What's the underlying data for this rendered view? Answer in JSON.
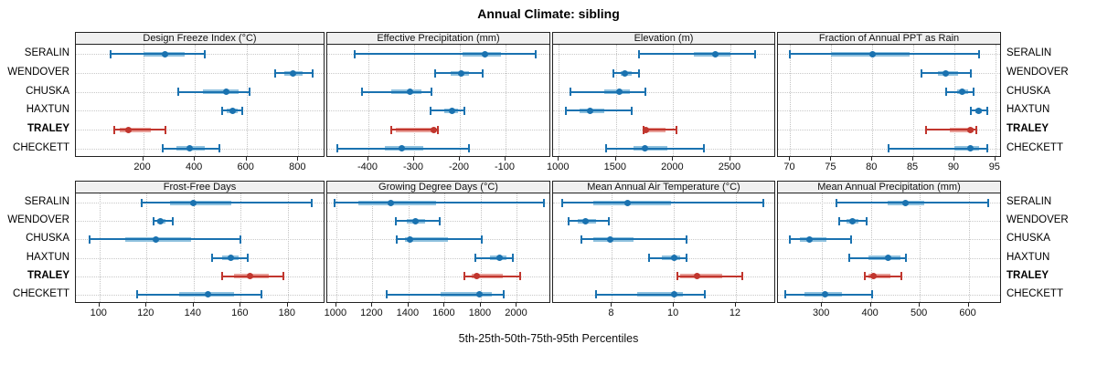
{
  "title": "Annual Climate: sibling",
  "caption": "5th-25th-50th-75th-95th Percentiles",
  "stations": [
    "SERALIN",
    "WENDOVER",
    "CHUSKA",
    "HAXTUN",
    "TRALEY",
    "CHECKETT"
  ],
  "highlight_station": "TRALEY",
  "colors": {
    "series_line": "#1a72b0",
    "series_band": "#8fc1de",
    "highlight_line": "#c1362e",
    "highlight_band": "#e8a099",
    "grid": "#c6c6c6",
    "strip_bg": "#f0f0f0",
    "panel_border": "#222222"
  },
  "chart_data": {
    "type": "scatter",
    "variant": "multi-panel percentile interval dot plot (5-25-50-75-95)",
    "percentile_levels": [
      5,
      25,
      50,
      75,
      95
    ],
    "legend_position": "none",
    "grid": "dotted",
    "panels": [
      {
        "title": "Design Freeze Index (°C)",
        "grid_row": 1,
        "grid_col": 1,
        "xlim": [
          -60,
          905
        ],
        "ticks": [
          200,
          400,
          600,
          800
        ],
        "series": [
          {
            "station": "SERALIN",
            "p": [
              75,
              200,
              285,
              360,
              440
            ]
          },
          {
            "station": "WENDOVER",
            "p": [
              710,
              745,
              780,
              815,
              855
            ]
          },
          {
            "station": "CHUSKA",
            "p": [
              335,
              430,
              520,
              570,
              610
            ]
          },
          {
            "station": "HAXTUN",
            "p": [
              505,
              525,
              545,
              565,
              585
            ]
          },
          {
            "station": "TRALEY",
            "p": [
              90,
              108,
              145,
              230,
              285
            ]
          },
          {
            "station": "CHECKETT",
            "p": [
              275,
              330,
              380,
              440,
              495
            ]
          }
        ]
      },
      {
        "title": "Effective Precipitation (mm)",
        "grid_row": 1,
        "grid_col": 2,
        "xlim": [
          -490,
          0
        ],
        "ticks": [
          -400,
          -300,
          -200,
          -100
        ],
        "series": [
          {
            "station": "SERALIN",
            "p": [
              -430,
              -195,
              -145,
              -110,
              -35
            ]
          },
          {
            "station": "WENDOVER",
            "p": [
              -255,
              -220,
              -197,
              -180,
              -150
            ]
          },
          {
            "station": "CHUSKA",
            "p": [
              -415,
              -350,
              -310,
              -285,
              -262
            ]
          },
          {
            "station": "HAXTUN",
            "p": [
              -265,
              -235,
              -218,
              -205,
              -190
            ]
          },
          {
            "station": "TRALEY",
            "p": [
              -350,
              -340,
              -257,
              -253,
              -248
            ]
          },
          {
            "station": "CHECKETT",
            "p": [
              -468,
              -365,
              -328,
              -280,
              -180
            ]
          }
        ]
      },
      {
        "title": "Elevation (m)",
        "grid_row": 1,
        "grid_col": 3,
        "xlim": [
          950,
          2900
        ],
        "ticks": [
          1000,
          1500,
          2000,
          2500
        ],
        "series": [
          {
            "station": "SERALIN",
            "p": [
              1700,
              2180,
              2370,
              2500,
              2720
            ]
          },
          {
            "station": "WENDOVER",
            "p": [
              1480,
              1540,
              1580,
              1640,
              1700
            ]
          },
          {
            "station": "CHUSKA",
            "p": [
              1100,
              1400,
              1530,
              1620,
              1760
            ]
          },
          {
            "station": "HAXTUN",
            "p": [
              1060,
              1180,
              1270,
              1400,
              1640
            ]
          },
          {
            "station": "TRALEY",
            "p": [
              1745,
              1755,
              1760,
              1930,
              2030
            ]
          },
          {
            "station": "CHECKETT",
            "p": [
              1410,
              1650,
              1750,
              1950,
              2270
            ]
          }
        ]
      },
      {
        "title": "Fraction of Annual PPT as Rain",
        "grid_row": 1,
        "grid_col": 4,
        "xlim": [
          68.5,
          95.8
        ],
        "ticks": [
          70,
          75,
          80,
          85,
          90,
          95
        ],
        "series": [
          {
            "station": "SERALIN",
            "p": [
              70,
              75,
              80,
              84.5,
              93
            ]
          },
          {
            "station": "WENDOVER",
            "p": [
              86,
              88,
              89,
              90.5,
              92
            ]
          },
          {
            "station": "CHUSKA",
            "p": [
              89,
              90.3,
              91,
              91.7,
              92.3
            ]
          },
          {
            "station": "HAXTUN",
            "p": [
              92,
              92.6,
              93,
              93.4,
              94
            ]
          },
          {
            "station": "TRALEY",
            "p": [
              86.5,
              89.5,
              92,
              92.4,
              92.7
            ]
          },
          {
            "station": "CHECKETT",
            "p": [
              82,
              90,
              92,
              93,
              94
            ]
          }
        ]
      },
      {
        "title": "Frost-Free Days",
        "grid_row": 2,
        "grid_col": 1,
        "xlim": [
          90,
          196
        ],
        "ticks": [
          100,
          120,
          140,
          160,
          180
        ],
        "series": [
          {
            "station": "SERALIN",
            "p": [
              118,
              130,
              140,
              156,
              190
            ]
          },
          {
            "station": "WENDOVER",
            "p": [
              123,
              124.5,
              126,
              128,
              131
            ]
          },
          {
            "station": "CHUSKA",
            "p": [
              96,
              111,
              124,
              139,
              160
            ]
          },
          {
            "station": "HAXTUN",
            "p": [
              148,
              152,
              156,
              159,
              163
            ]
          },
          {
            "station": "TRALEY",
            "p": [
              152,
              157,
              164,
              172,
              178
            ]
          },
          {
            "station": "CHECKETT",
            "p": [
              116,
              134,
              146,
              157,
              169
            ]
          }
        ]
      },
      {
        "title": "Growing Degree Days (°C)",
        "grid_row": 2,
        "grid_col": 2,
        "xlim": [
          950,
          2190
        ],
        "ticks": [
          1000,
          1200,
          1400,
          1600,
          1800,
          2000
        ],
        "series": [
          {
            "station": "SERALIN",
            "p": [
              990,
              1120,
              1300,
              1550,
              2150
            ]
          },
          {
            "station": "WENDOVER",
            "p": [
              1330,
              1390,
              1440,
              1490,
              1570
            ]
          },
          {
            "station": "CHUSKA",
            "p": [
              1335,
              1380,
              1410,
              1620,
              1805
            ]
          },
          {
            "station": "HAXTUN",
            "p": [
              1770,
              1850,
              1905,
              1940,
              1975
            ]
          },
          {
            "station": "TRALEY",
            "p": [
              1710,
              1750,
              1775,
              1920,
              2020
            ]
          },
          {
            "station": "CHECKETT",
            "p": [
              1280,
              1580,
              1795,
              1860,
              1925
            ]
          }
        ]
      },
      {
        "title": "Mean Annual Air Temperature (°C)",
        "grid_row": 2,
        "grid_col": 3,
        "xlim": [
          6.1,
          13.3
        ],
        "ticks": [
          8,
          10,
          12
        ],
        "series": [
          {
            "station": "SERALIN",
            "p": [
              6.4,
              7.4,
              8.5,
              9.9,
              12.9
            ]
          },
          {
            "station": "WENDOVER",
            "p": [
              6.6,
              6.9,
              7.15,
              7.5,
              7.9
            ]
          },
          {
            "station": "CHUSKA",
            "p": [
              7.0,
              7.4,
              7.95,
              8.7,
              10.4
            ]
          },
          {
            "station": "HAXTUN",
            "p": [
              9.2,
              9.6,
              10.0,
              10.2,
              10.4
            ]
          },
          {
            "station": "TRALEY",
            "p": [
              10.1,
              10.2,
              10.75,
              11.55,
              12.2
            ]
          },
          {
            "station": "CHECKETT",
            "p": [
              7.5,
              8.8,
              10.0,
              10.3,
              11.0
            ]
          }
        ]
      },
      {
        "title": "Mean Annual Precipitation (mm)",
        "grid_row": 2,
        "grid_col": 4,
        "xlim": [
          210,
          668
        ],
        "ticks": [
          300,
          400,
          500,
          600
        ],
        "series": [
          {
            "station": "SERALIN",
            "p": [
              330,
              435,
              470,
              510,
              640
            ]
          },
          {
            "station": "WENDOVER",
            "p": [
              335,
              350,
              362,
              375,
              392
            ]
          },
          {
            "station": "CHUSKA",
            "p": [
              235,
              255,
              275,
              310,
              360
            ]
          },
          {
            "station": "HAXTUN",
            "p": [
              355,
              395,
              435,
              460,
              472
            ]
          },
          {
            "station": "TRALEY",
            "p": [
              388,
              395,
              405,
              440,
              462
            ]
          },
          {
            "station": "CHECKETT",
            "p": [
              225,
              265,
              307,
              340,
              402
            ]
          }
        ]
      }
    ]
  }
}
